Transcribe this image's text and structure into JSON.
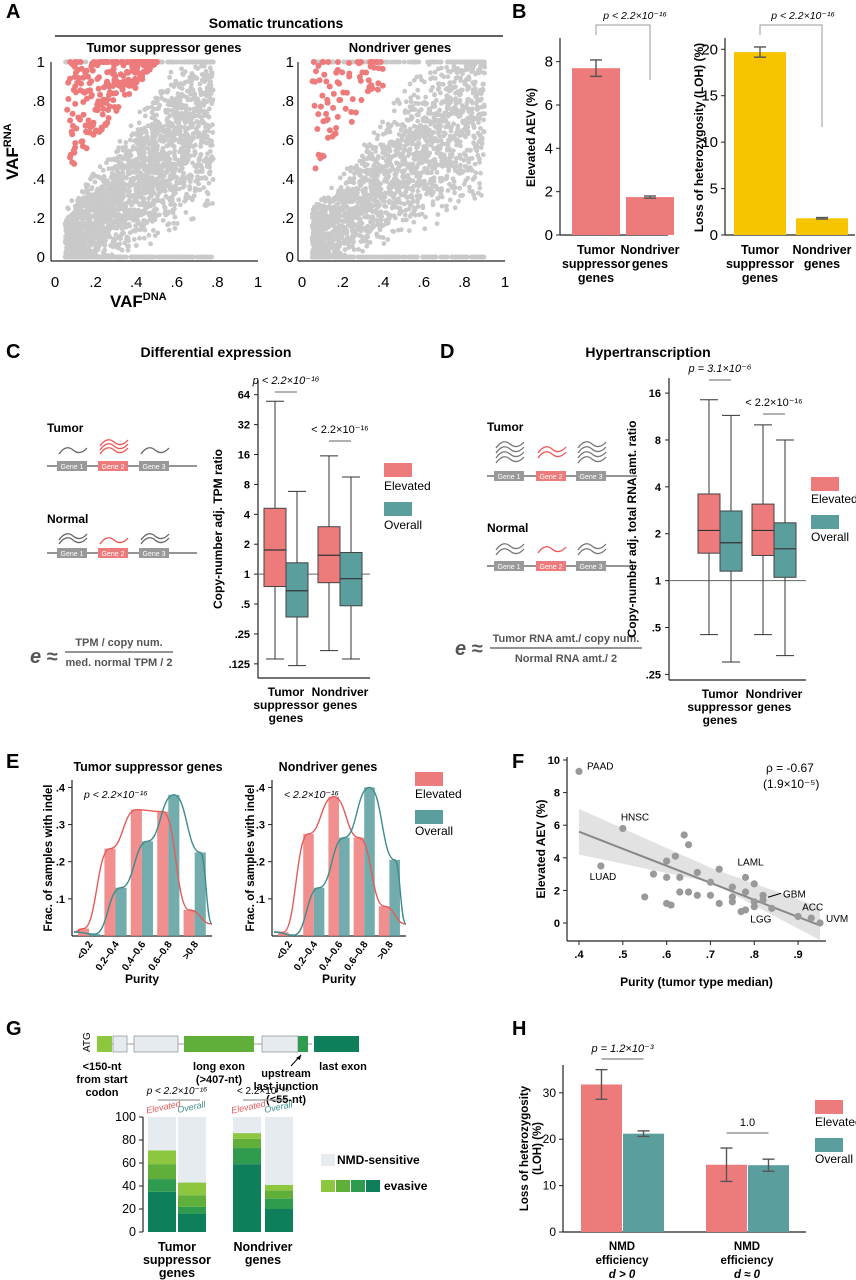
{
  "colors": {
    "elevated": "#EE7B7B",
    "overall": "#5B9E9E",
    "loh": "#F7C500",
    "grey": "#C9C9C9",
    "axis": "#222222",
    "green1": "#8DC63F",
    "green2": "#5FAF3A",
    "green3": "#2E9B4E",
    "green4": "#0F7F5B"
  },
  "panels": {
    "A": {
      "letter": "A",
      "title": "Somatic truncations",
      "sub_left": "Tumor suppressor genes",
      "sub_right": "Nondriver genes",
      "ylabel": "VAF",
      "ylabel_sup": "RNA",
      "xlabel": "VAF",
      "xlabel_sup": "DNA",
      "ticks": [
        "0",
        ".2",
        ".4",
        ".6",
        ".8",
        "1"
      ]
    },
    "B": {
      "letter": "B",
      "pval": "p < 2.2×10⁻¹⁶"
    },
    "C": {
      "letter": "C",
      "title": "Differential expression",
      "tumor": "Tumor",
      "normal": "Normal",
      "gene1": "Gene 1",
      "gene2": "Gene 2",
      "gene3": "Gene 3",
      "eq_num": "TPM / copy num.",
      "eq_den": "med. normal TPM / 2",
      "legend_elev": "Elevated",
      "legend_over": "Overall"
    },
    "D": {
      "letter": "D",
      "title": "Hypertranscription",
      "tumor": "Tumor",
      "normal": "Normal",
      "gene1": "Gene 1",
      "gene2": "Gene 2",
      "gene3": "Gene 3",
      "eq_num": "Tumor RNA amt./ copy num.",
      "eq_den": "Normal RNA amt./ 2",
      "legend_elev": "Elevated",
      "legend_over": "Overall"
    },
    "E": {
      "letter": "E",
      "legend_elev": "Elevated",
      "legend_over": "Overall"
    },
    "F": {
      "letter": "F",
      "rho": "ρ = -0.67",
      "rho_p": "(1.9×10⁻⁵)"
    },
    "G": {
      "letter": "G",
      "atg": "ATG",
      "lbl1": "<150-nt",
      "lbl1b": "from start",
      "lbl1c": "codon",
      "lbl2": "long exon",
      "lbl2b": "(>407-nt)",
      "lbl3": "upstream",
      "lbl3b": "last junction",
      "lbl3c": "(<55-nt)",
      "lbl4": "last exon",
      "legend_nmd": "NMD-sensitive",
      "legend_evasive": "evasive"
    },
    "H": {
      "letter": "H",
      "legend_elev": "Elevated",
      "legend_over": "Overall"
    }
  },
  "chart_data": [
    {
      "id": "B1",
      "type": "bar",
      "categories": [
        "Tumor suppressor genes",
        "Nondriver genes"
      ],
      "values": [
        7.7,
        1.75
      ],
      "errors": [
        0.38,
        0.05
      ],
      "ylabel": "Elevated AEV (%)",
      "ylim": [
        0,
        9
      ],
      "yticks": [
        0,
        2,
        4,
        6,
        8
      ],
      "pval": "p < 2.2×10⁻¹⁶",
      "cat_lines": [
        [
          "Tumor",
          "suppressor",
          "genes"
        ],
        [
          "Nondriver",
          "genes"
        ]
      ]
    },
    {
      "id": "B2",
      "type": "bar",
      "categories": [
        "Tumor suppressor genes",
        "Nondriver genes"
      ],
      "values": [
        19.7,
        1.8
      ],
      "errors": [
        0.55,
        0.08
      ],
      "ylabel": "Loss of heterozygosity (LOH) (%)",
      "ylim": [
        0,
        21
      ],
      "yticks": [
        0,
        5,
        10,
        15,
        20
      ],
      "pval": "p < 2.2×10⁻¹⁶",
      "cat_lines": [
        [
          "Tumor",
          "suppressor",
          "genes"
        ],
        [
          "Nondriver",
          "genes"
        ]
      ]
    },
    {
      "id": "C",
      "type": "box",
      "ylabel": "Copy-number adj. TPM ratio",
      "scale": "log2",
      "ylim": [
        0.09,
        90
      ],
      "ytick_values": [
        0.125,
        0.25,
        0.5,
        1,
        2,
        4,
        8,
        16,
        32,
        64
      ],
      "ytick_labels": [
        ".125",
        ".25",
        ".5",
        "1",
        "2",
        "4",
        "8",
        "16",
        "32",
        "64"
      ],
      "ref_line": 1,
      "categories": [
        [
          "Tumor",
          "suppressor",
          "genes"
        ],
        [
          "Nondriver",
          "genes"
        ]
      ],
      "series": [
        {
          "name": "Elevated",
          "boxes": [
            {
              "wlo": 0.14,
              "q1": 0.75,
              "med": 1.75,
              "q3": 4.6,
              "whi": 55
            },
            {
              "wlo": 0.17,
              "q1": 0.82,
              "med": 1.55,
              "q3": 3.0,
              "whi": 15.5
            }
          ]
        },
        {
          "name": "Overall",
          "boxes": [
            {
              "wlo": 0.12,
              "q1": 0.37,
              "med": 0.68,
              "q3": 1.3,
              "whi": 6.8
            },
            {
              "wlo": 0.14,
              "q1": 0.48,
              "med": 0.9,
              "q3": 1.65,
              "whi": 9.5
            }
          ]
        }
      ],
      "pvals": [
        "p < 2.2×10⁻¹⁶",
        "< 2.2×10⁻¹⁶"
      ]
    },
    {
      "id": "D",
      "type": "box",
      "ylabel": "Copy-number adj. total RNA amt. ratio",
      "scale": "log2",
      "ylim": [
        0.23,
        20
      ],
      "ytick_values": [
        0.25,
        0.5,
        1,
        2,
        4,
        8,
        16
      ],
      "ytick_labels": [
        ".25",
        ".5",
        "1",
        "2",
        "4",
        "8",
        "16"
      ],
      "ref_line": 1,
      "categories": [
        [
          "Tumor",
          "suppressor",
          "genes"
        ],
        [
          "Nondriver",
          "genes"
        ]
      ],
      "series": [
        {
          "name": "Elevated",
          "boxes": [
            {
              "wlo": 0.45,
              "q1": 1.5,
              "med": 2.1,
              "q3": 3.6,
              "whi": 14.5
            },
            {
              "wlo": 0.45,
              "q1": 1.45,
              "med": 2.1,
              "q3": 3.1,
              "whi": 10
            }
          ]
        },
        {
          "name": "Overall",
          "boxes": [
            {
              "wlo": 0.3,
              "q1": 1.15,
              "med": 1.75,
              "q3": 2.8,
              "whi": 11.5
            },
            {
              "wlo": 0.33,
              "q1": 1.05,
              "med": 1.6,
              "q3": 2.35,
              "whi": 8
            }
          ]
        }
      ],
      "pvals": [
        "p = 3.1×10⁻⁶",
        "< 2.2×10⁻¹⁶"
      ]
    },
    {
      "id": "E1",
      "type": "bar",
      "title": "Tumor suppressor genes",
      "pval": "p < 2.2×10⁻¹⁶",
      "categories": [
        "<0.2",
        "0.2–0.4",
        "0.4–0.6",
        "0.6–0.8",
        ">0.8"
      ],
      "series": [
        {
          "name": "Elevated",
          "values": [
            0.02,
            0.235,
            0.34,
            0.335,
            0.07
          ]
        },
        {
          "name": "Overall",
          "values": [
            0.005,
            0.13,
            0.255,
            0.38,
            0.225
          ]
        }
      ],
      "ylabel": "Frac. of samples with indel",
      "xlabel": "Purity",
      "ylim": [
        0,
        0.42
      ],
      "ytick_values": [
        0.1,
        0.2,
        0.3,
        0.4
      ],
      "ytick_labels": [
        ".1",
        ".2",
        ".3",
        ".4"
      ]
    },
    {
      "id": "E2",
      "type": "bar",
      "title": "Nondriver genes",
      "pval": "< 2.2×10⁻¹⁶",
      "categories": [
        "<0.2",
        "0.2–0.4",
        "0.4–0.6",
        "0.6–0.8",
        ">0.8"
      ],
      "series": [
        {
          "name": "Elevated",
          "values": [
            0.01,
            0.275,
            0.375,
            0.265,
            0.08
          ]
        },
        {
          "name": "Overall",
          "values": [
            0.002,
            0.13,
            0.265,
            0.4,
            0.205
          ]
        }
      ],
      "ylabel": "Frac. of samples with indel",
      "xlabel": "Purity",
      "ylim": [
        0,
        0.42
      ],
      "ytick_values": [
        0.1,
        0.2,
        0.3,
        0.4
      ],
      "ytick_labels": [
        ".1",
        ".2",
        ".3",
        ".4"
      ]
    },
    {
      "id": "F",
      "type": "scatter",
      "xlabel": "Purity (tumor type median)",
      "ylabel": "Elevated AEV (%)",
      "xlim": [
        0.4,
        0.95
      ],
      "ylim": [
        -0.6,
        10
      ],
      "xtick_values": [
        0.4,
        0.5,
        0.6,
        0.7,
        0.8,
        0.9
      ],
      "xtick_labels": [
        ".4",
        ".5",
        ".6",
        ".7",
        ".8",
        ".9"
      ],
      "ytick_values": [
        0,
        2,
        4,
        6,
        8,
        10
      ],
      "points": [
        [
          0.4,
          9.3
        ],
        [
          0.5,
          5.8
        ],
        [
          0.45,
          3.5
        ],
        [
          0.62,
          4.1
        ],
        [
          0.64,
          5.4
        ],
        [
          0.65,
          4.8
        ],
        [
          0.6,
          3.8
        ],
        [
          0.6,
          2.8
        ],
        [
          0.63,
          2.8
        ],
        [
          0.67,
          3.1
        ],
        [
          0.63,
          1.9
        ],
        [
          0.7,
          2.5
        ],
        [
          0.75,
          2.2
        ],
        [
          0.78,
          2.8
        ],
        [
          0.8,
          2.4
        ],
        [
          0.75,
          1.6
        ],
        [
          0.82,
          1.7
        ],
        [
          0.8,
          1.3
        ],
        [
          0.8,
          1.0
        ],
        [
          0.78,
          0.8
        ],
        [
          0.6,
          1.2
        ],
        [
          0.61,
          1.1
        ],
        [
          0.65,
          1.9
        ],
        [
          0.7,
          1.7
        ],
        [
          0.75,
          1.3
        ],
        [
          0.67,
          1.7
        ],
        [
          0.55,
          1.6
        ],
        [
          0.57,
          3.0
        ],
        [
          0.72,
          1.2
        ],
        [
          0.77,
          0.7
        ],
        [
          0.82,
          1.4
        ],
        [
          0.84,
          0.9
        ],
        [
          0.9,
          0.4
        ],
        [
          0.95,
          0.0
        ],
        [
          0.93,
          0.3
        ],
        [
          0.78,
          1.9
        ],
        [
          0.72,
          3.3
        ]
      ],
      "labels": [
        {
          "text": "PAAD",
          "x": 0.4,
          "y": 9.3
        },
        {
          "text": "HNSC",
          "x": 0.5,
          "y": 5.8
        },
        {
          "text": "LUAD",
          "x": 0.45,
          "y": 3.5
        },
        {
          "text": "LAML",
          "x": 0.78,
          "y": 2.8
        },
        {
          "text": "GBM",
          "x": 0.82,
          "y": 1.7
        },
        {
          "text": "LGG",
          "x": 0.8,
          "y": 1.0
        },
        {
          "text": "ACC",
          "x": 0.9,
          "y": 0.4
        },
        {
          "text": "UVM",
          "x": 0.95,
          "y": 0.0
        }
      ],
      "fit": [
        [
          0.4,
          5.6
        ],
        [
          0.95,
          -0.15
        ]
      ]
    },
    {
      "id": "G",
      "type": "stacked-bar",
      "ylim": [
        0,
        100
      ],
      "ytick_values": [
        0,
        20,
        40,
        60,
        80,
        100
      ],
      "categories": [
        [
          "Tumor",
          "suppressor",
          "genes"
        ],
        [
          "Nondriver",
          "genes"
        ]
      ],
      "sub_labels": [
        "Elevated",
        "Overall"
      ],
      "pvals": [
        "p < 2.2×10⁻¹⁶",
        "< 2.2×10⁻¹⁶"
      ],
      "stack_order": [
        "evasive-4",
        "evasive-3",
        "evasive-2",
        "evasive-1",
        "NMD-sensitive"
      ],
      "bars": [
        [
          35,
          11,
          13,
          12,
          29
        ],
        [
          16,
          6,
          10,
          11,
          57
        ],
        [
          59,
          14,
          8,
          5,
          14
        ],
        [
          20,
          9,
          7,
          5,
          59
        ]
      ]
    },
    {
      "id": "H",
      "type": "bar",
      "ylabel": "Loss of heterozygosity (LOH) (%)",
      "ylim": [
        0,
        36
      ],
      "yticks": [
        0,
        10,
        20,
        30
      ],
      "categories": [
        [
          "NMD",
          "efficiency",
          "d > 0"
        ],
        [
          "NMD",
          "efficiency",
          "d ≈ 0"
        ]
      ],
      "series": [
        {
          "name": "Elevated",
          "values": [
            31.8,
            14.5
          ],
          "errors": [
            3.2,
            3.6
          ]
        },
        {
          "name": "Overall",
          "values": [
            21.2,
            14.4
          ],
          "errors": [
            0.6,
            1.3
          ]
        }
      ],
      "pvals": [
        "p = 1.2×10⁻³",
        "1.0"
      ]
    }
  ]
}
